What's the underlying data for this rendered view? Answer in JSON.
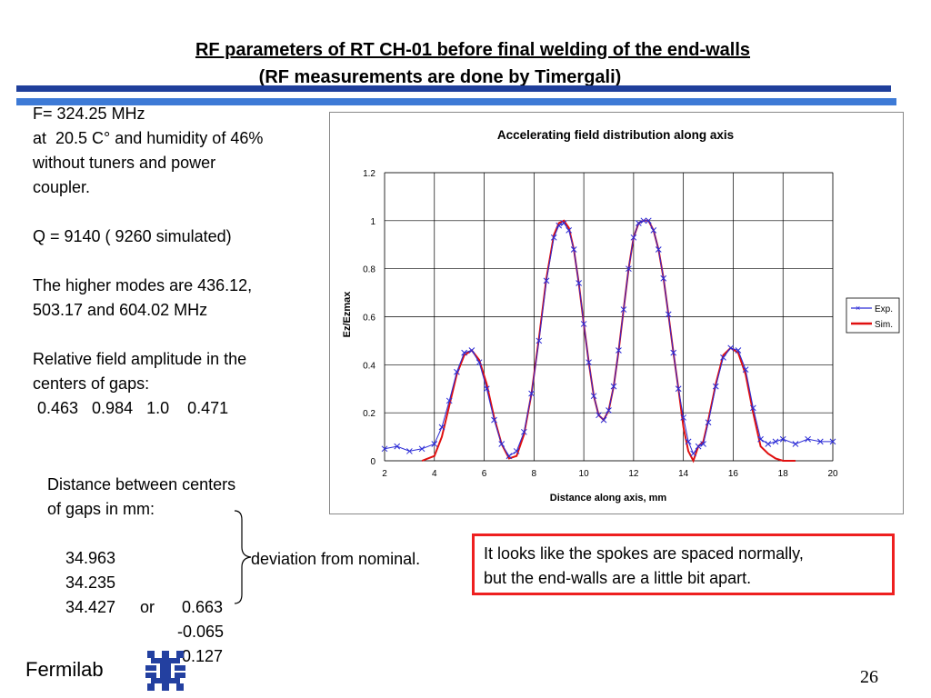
{
  "header": {
    "title": "RF parameters of RT CH-01 before final welding of the end-walls",
    "subtitle": "(RF measurements are done by Timergali)"
  },
  "left_text": {
    "freq": "F= 324.25 MHz",
    "conditions": "at  20.5 C° and humidity of 46%",
    "conditions2": "without tuners and power",
    "conditions3": "coupler.",
    "q": "Q = 9140 ( 9260 simulated)",
    "modes1": "The higher modes are 436.12,",
    "modes2": "503.17 and 604.02 MHz",
    "rel1": "Relative field amplitude in the",
    "rel2": "centers of gaps:",
    "rel3": " 0.463   0.984   1.0    0.471"
  },
  "gaps": {
    "title1": "Distance between centers",
    "title2": "of gaps in mm:",
    "rows": [
      {
        "dist": "34.963",
        "mid": "",
        "dev": "0.663"
      },
      {
        "dist": "34.235",
        "mid": "or",
        "dev": "-0.065"
      },
      {
        "dist": "34.427",
        "mid": "",
        "dev": "0.127"
      }
    ],
    "deviation_label": "deviation from nominal."
  },
  "note": {
    "line1": "It looks like the spokes are spaced normally,",
    "line2": "but the end-walls are a little bit apart."
  },
  "footer": {
    "brand": "Fermilab",
    "page_number": "26"
  },
  "colors": {
    "exp": "#2b2bd6",
    "sim": "#e01010",
    "bar_dark": "#1f3f9b",
    "bar_light": "#3d7ad6",
    "note_border": "#ee2020"
  },
  "chart_data": {
    "type": "line",
    "title": "Accelerating field distribution along axis",
    "xlabel": "Distance along axis, mm",
    "ylabel": "Ez/Ezmax",
    "xlim": [
      2,
      20
    ],
    "ylim": [
      0,
      1.2
    ],
    "xticks": [
      "2",
      "4",
      "6",
      "8",
      "10",
      "12",
      "14",
      "16",
      "18",
      "20"
    ],
    "yticks": [
      "0",
      "0.2",
      "0.4",
      "0.6",
      "0.8",
      "1",
      "1.2"
    ],
    "grid": true,
    "legend_position": "right",
    "series": [
      {
        "name": "Exp.",
        "marker": "x",
        "x": [
          2.0,
          2.5,
          3.0,
          3.5,
          4.0,
          4.3,
          4.6,
          4.9,
          5.2,
          5.5,
          5.8,
          6.1,
          6.4,
          6.7,
          7.0,
          7.3,
          7.6,
          7.9,
          8.2,
          8.5,
          8.8,
          9.0,
          9.2,
          9.4,
          9.6,
          9.8,
          10.0,
          10.2,
          10.4,
          10.6,
          10.8,
          11.0,
          11.2,
          11.4,
          11.6,
          11.8,
          12.0,
          12.2,
          12.4,
          12.6,
          12.8,
          13.0,
          13.2,
          13.4,
          13.6,
          13.8,
          14.0,
          14.2,
          14.4,
          14.6,
          14.8,
          15.0,
          15.3,
          15.6,
          15.9,
          16.2,
          16.5,
          16.8,
          17.1,
          17.4,
          17.7,
          18.0,
          18.5,
          19.0,
          19.5,
          20.0
        ],
        "y": [
          0.05,
          0.06,
          0.04,
          0.05,
          0.07,
          0.14,
          0.25,
          0.37,
          0.45,
          0.46,
          0.41,
          0.3,
          0.17,
          0.07,
          0.02,
          0.04,
          0.12,
          0.28,
          0.5,
          0.75,
          0.93,
          0.98,
          0.99,
          0.96,
          0.88,
          0.74,
          0.57,
          0.41,
          0.27,
          0.19,
          0.17,
          0.21,
          0.31,
          0.46,
          0.63,
          0.8,
          0.93,
          0.99,
          1.0,
          1.0,
          0.96,
          0.88,
          0.76,
          0.61,
          0.45,
          0.3,
          0.18,
          0.08,
          0.03,
          0.06,
          0.07,
          0.16,
          0.31,
          0.43,
          0.47,
          0.46,
          0.38,
          0.22,
          0.09,
          0.07,
          0.08,
          0.09,
          0.07,
          0.09,
          0.08,
          0.08
        ]
      },
      {
        "name": "Sim.",
        "x": [
          3.5,
          4.0,
          4.3,
          4.6,
          4.9,
          5.2,
          5.5,
          5.8,
          6.1,
          6.4,
          6.7,
          7.0,
          7.3,
          7.6,
          7.9,
          8.2,
          8.5,
          8.8,
          9.0,
          9.2,
          9.4,
          9.6,
          9.8,
          10.0,
          10.2,
          10.4,
          10.6,
          10.8,
          11.0,
          11.2,
          11.4,
          11.6,
          11.8,
          12.0,
          12.2,
          12.4,
          12.6,
          12.8,
          13.0,
          13.2,
          13.4,
          13.6,
          13.8,
          14.0,
          14.2,
          14.4,
          14.6,
          14.8,
          15.0,
          15.3,
          15.6,
          15.9,
          16.2,
          16.5,
          16.8,
          17.1,
          17.4,
          17.7,
          18.0,
          18.5
        ],
        "y": [
          0.0,
          0.02,
          0.1,
          0.23,
          0.36,
          0.44,
          0.46,
          0.42,
          0.32,
          0.18,
          0.07,
          0.01,
          0.02,
          0.11,
          0.28,
          0.51,
          0.76,
          0.94,
          0.99,
          1.0,
          0.97,
          0.88,
          0.74,
          0.57,
          0.41,
          0.27,
          0.19,
          0.17,
          0.21,
          0.31,
          0.46,
          0.63,
          0.8,
          0.93,
          0.99,
          1.0,
          1.0,
          0.96,
          0.88,
          0.76,
          0.61,
          0.45,
          0.3,
          0.14,
          0.04,
          0.0,
          0.06,
          0.08,
          0.17,
          0.32,
          0.44,
          0.47,
          0.45,
          0.36,
          0.2,
          0.06,
          0.03,
          0.01,
          0.0,
          0.0
        ]
      }
    ]
  }
}
